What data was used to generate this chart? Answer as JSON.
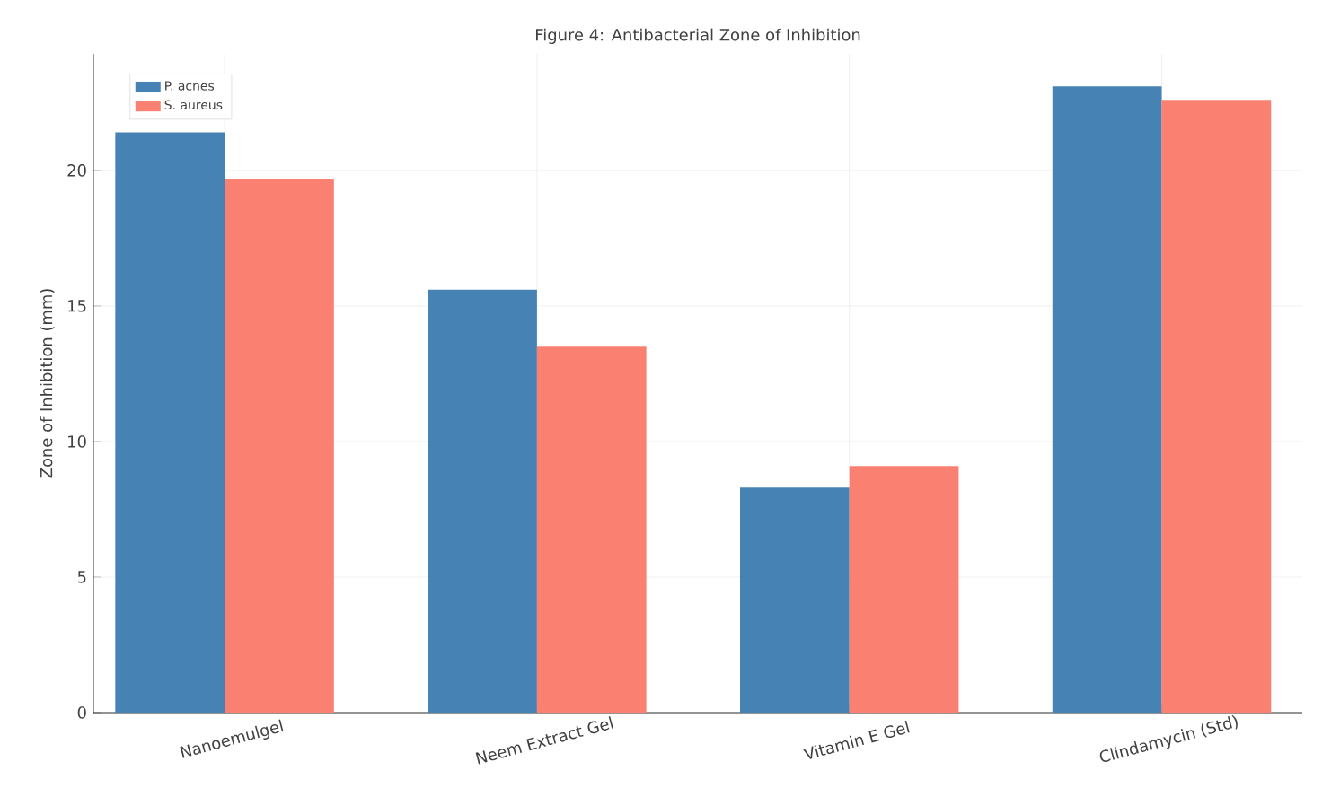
{
  "chart_data": {
    "type": "bar",
    "title": "Figure 4: Antibacterial Zone of Inhibition",
    "ylabel": "Zone of Inhibition (mm)",
    "categories": [
      "Nanoemulgel",
      "Neem Extract Gel",
      "Vitamin E Gel",
      "Clindamycin (Std)"
    ],
    "series": [
      {
        "name": "P. acnes",
        "color": "#4682b4",
        "values": [
          21.4,
          15.6,
          8.3,
          23.1
        ]
      },
      {
        "name": "S. aureus",
        "color": "#fa8072",
        "values": [
          19.7,
          13.5,
          9.1,
          22.6
        ]
      }
    ],
    "ylim": [
      0,
      24.3
    ],
    "yticks": [
      0,
      5,
      10,
      15,
      20
    ],
    "grid": true,
    "legend": "top left"
  }
}
